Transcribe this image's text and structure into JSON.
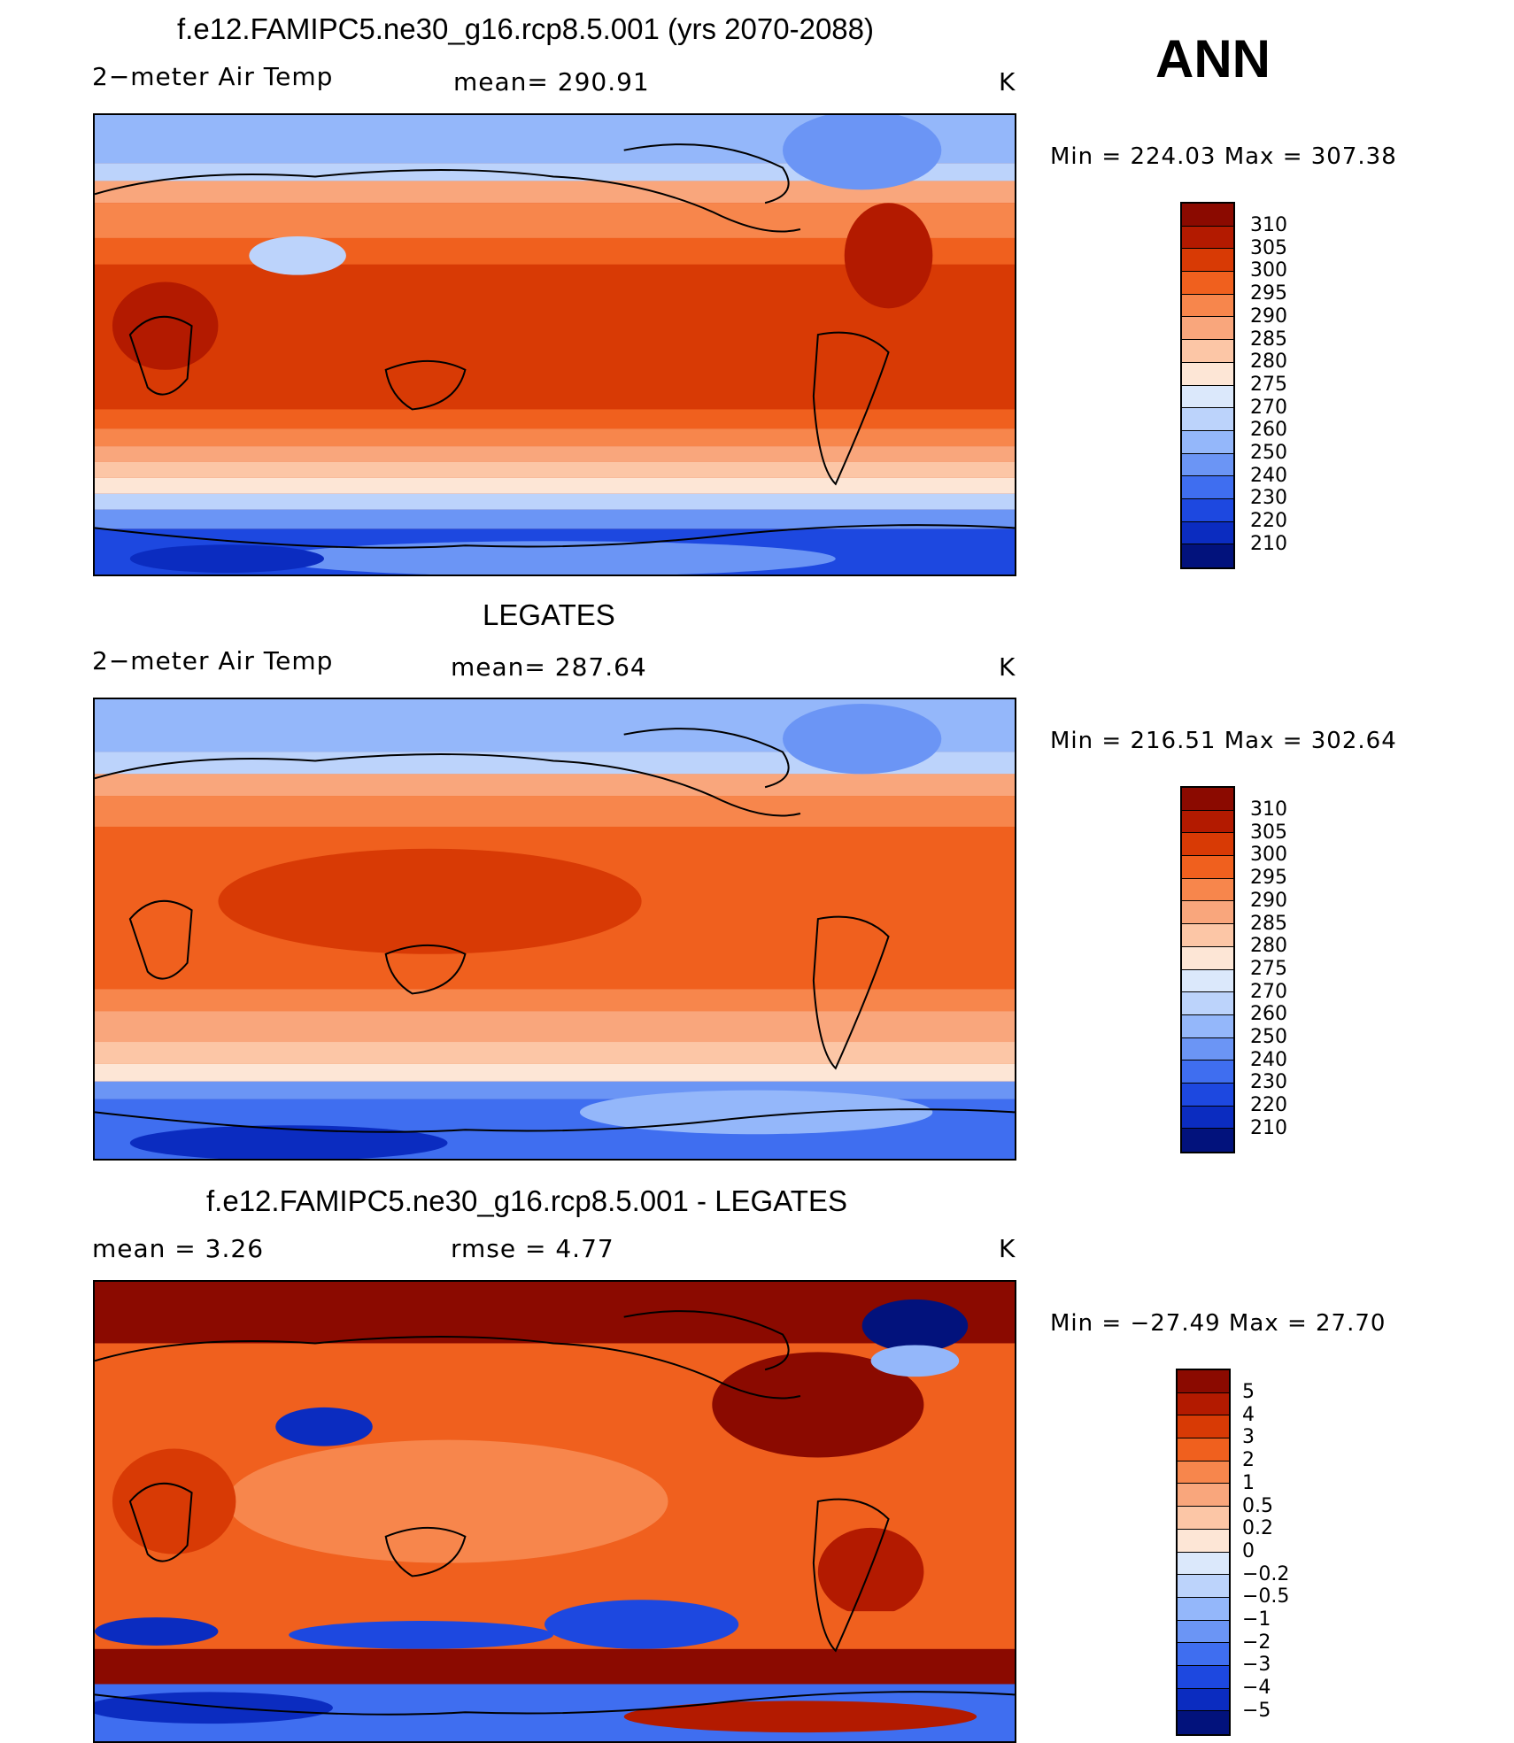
{
  "season": "ANN",
  "panels": [
    {
      "title": "f.e12.FAMIPC5.ne30_g16.rcp8.5.001 (yrs 2070-2088)",
      "left_label": "2−meter Air Temp",
      "center_label": "mean=  290.91",
      "units": "K",
      "min_label": "Min  =  224.03  Max  =  307.38",
      "colorbar_ticks": [
        "310",
        "305",
        "300",
        "295",
        "290",
        "285",
        "280",
        "275",
        "270",
        "260",
        "250",
        "240",
        "230",
        "220",
        "210"
      ],
      "colorbar_colors": [
        "#8b0a00",
        "#b31a00",
        "#d83a05",
        "#f0601e",
        "#f7864c",
        "#f9a67c",
        "#fcc6a6",
        "#fde6d6",
        "#dbe8fb",
        "#bcd3fb",
        "#94b7fa",
        "#6b95f5",
        "#3f6ef0",
        "#1d48e0",
        "#0b2cc0",
        "#02127c"
      ]
    },
    {
      "title": "LEGATES",
      "left_label": "2−meter Air Temp",
      "center_label": "mean=  287.64",
      "units": "K",
      "min_label": "Min  =  216.51  Max  =  302.64",
      "colorbar_ticks": [
        "310",
        "305",
        "300",
        "295",
        "290",
        "285",
        "280",
        "275",
        "270",
        "260",
        "250",
        "240",
        "230",
        "220",
        "210"
      ],
      "colorbar_colors": [
        "#8b0a00",
        "#b31a00",
        "#d83a05",
        "#f0601e",
        "#f7864c",
        "#f9a67c",
        "#fcc6a6",
        "#fde6d6",
        "#dbe8fb",
        "#bcd3fb",
        "#94b7fa",
        "#6b95f5",
        "#3f6ef0",
        "#1d48e0",
        "#0b2cc0",
        "#02127c"
      ]
    },
    {
      "title": "f.e12.FAMIPC5.ne30_g16.rcp8.5.001 - LEGATES",
      "left_label": "mean  =      3.26",
      "center_label": "rmse  =      4.77",
      "units": "K",
      "min_label": "Min  =  −27.49  Max  =    27.70",
      "colorbar_ticks": [
        "5",
        "4",
        "3",
        "2",
        "1",
        "0.5",
        "0.2",
        "0",
        "−0.2",
        "−0.5",
        "−1",
        "−2",
        "−3",
        "−4",
        "−5"
      ],
      "colorbar_colors": [
        "#8b0a00",
        "#b31a00",
        "#d83a05",
        "#f0601e",
        "#f7864c",
        "#f9a67c",
        "#fcc6a6",
        "#fde6d6",
        "#dbe8fb",
        "#bcd3fb",
        "#94b7fa",
        "#6b95f5",
        "#3f6ef0",
        "#1d48e0",
        "#0b2cc0",
        "#02127c"
      ]
    }
  ]
}
